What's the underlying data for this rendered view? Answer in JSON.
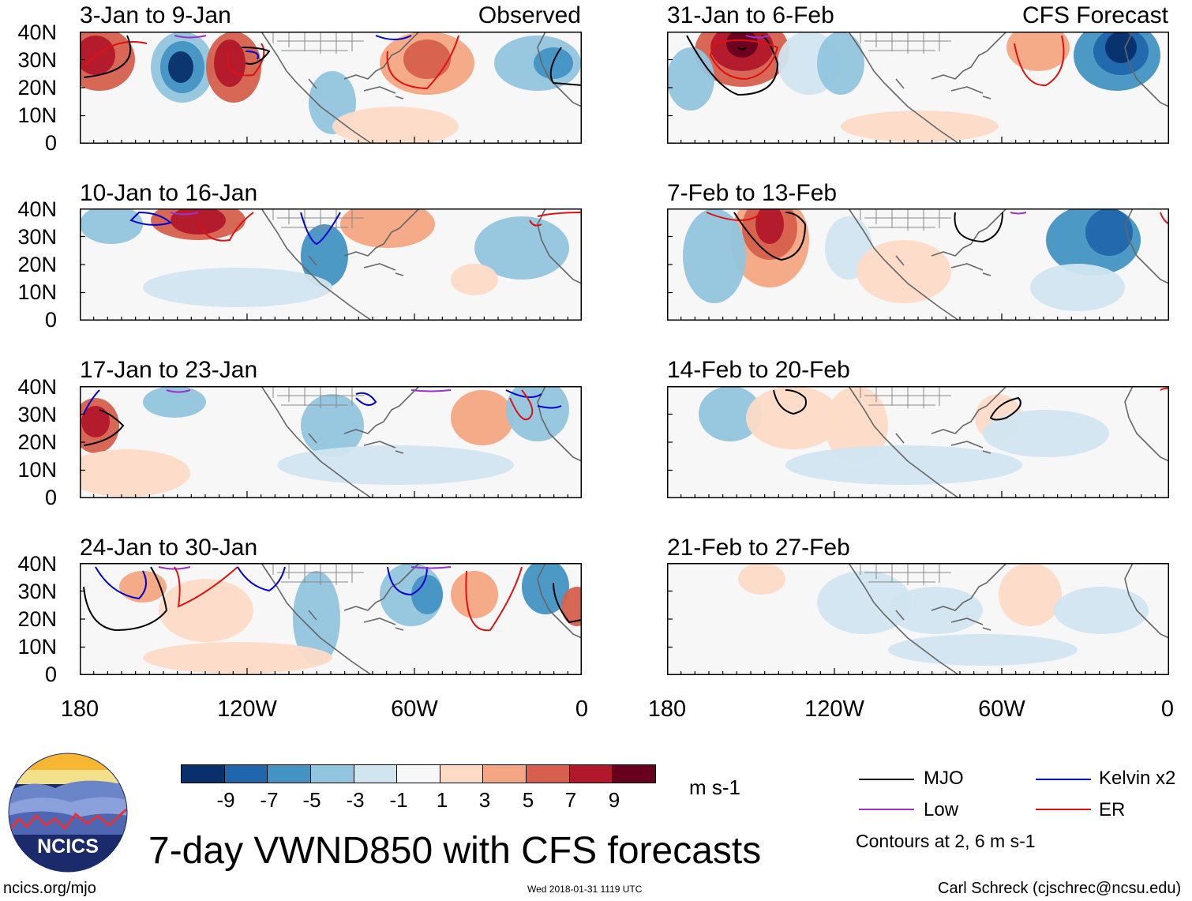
{
  "panels": [
    {
      "title": "3-Jan to 9-Jan",
      "tag": "Observed"
    },
    {
      "title": "31-Jan to 6-Feb",
      "tag": "CFS Forecast"
    },
    {
      "title": "10-Jan to 16-Jan",
      "tag": ""
    },
    {
      "title": "7-Feb to 13-Feb",
      "tag": ""
    },
    {
      "title": "17-Jan to 23-Jan",
      "tag": ""
    },
    {
      "title": "14-Feb to 20-Feb",
      "tag": ""
    },
    {
      "title": "24-Jan to 30-Jan",
      "tag": ""
    },
    {
      "title": "21-Feb to 27-Feb",
      "tag": ""
    }
  ],
  "lat_ticks": [
    "40N",
    "30N",
    "20N",
    "10N",
    "0"
  ],
  "lon_ticks": [
    "180",
    "120W",
    "60W",
    "0"
  ],
  "colorbar": {
    "labels": [
      "-9",
      "-7",
      "-5",
      "-3",
      "-1",
      "1",
      "3",
      "5",
      "7",
      "9"
    ],
    "colors": [
      "#08306b",
      "#2166ac",
      "#4393c3",
      "#92c5de",
      "#d1e5f0",
      "#f7f7f7",
      "#fddbc7",
      "#f4a582",
      "#d6604d",
      "#b2182b",
      "#67001f"
    ],
    "units": "m s-1"
  },
  "legend": {
    "items": [
      {
        "label": "MJO",
        "color": "#000000"
      },
      {
        "label": "Kelvin x2",
        "color": "#0000cc"
      },
      {
        "label": "Low",
        "color": "#9933cc"
      },
      {
        "label": "ER",
        "color": "#dd1111"
      }
    ],
    "note": "Contours at 2, 6 m s-1"
  },
  "title": "7-day VWND850 with CFS forecasts",
  "footer": {
    "left": "ncics.org/mjo",
    "center": "Wed 2018-01-31 1119 UTC",
    "right": "Carl Schreck (cjschrec@ncsu.edu)"
  },
  "logo": {
    "text": "NCICS"
  }
}
